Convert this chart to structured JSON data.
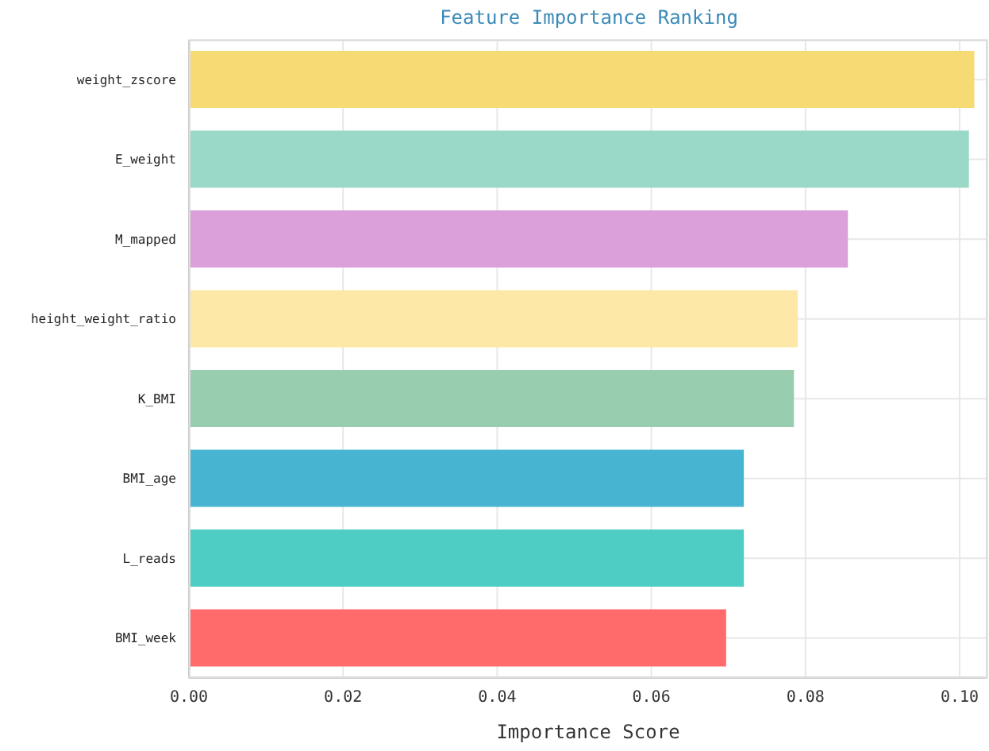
{
  "chart_data": {
    "type": "bar",
    "orientation": "horizontal",
    "title": "Feature Importance Ranking",
    "xlabel": "Importance Score",
    "categories": [
      "weight_zscore",
      "E_weight",
      "M_mapped",
      "height_weight_ratio",
      "K_BMI",
      "BMI_age",
      "L_reads",
      "BMI_week"
    ],
    "values": [
      0.1019,
      0.1012,
      0.0855,
      0.079,
      0.0785,
      0.072,
      0.072,
      0.0697
    ],
    "colors": [
      "#f6da74",
      "#9ad8c8",
      "#dba0da",
      "#fde8a8",
      "#98cdb0",
      "#47b5d2",
      "#4ecdc4",
      "#ff6b6b"
    ],
    "xlim": [
      0,
      0.1036
    ],
    "xticks": [
      {
        "value": 0,
        "label": "0.00"
      },
      {
        "value": 0.02,
        "label": "0.02"
      },
      {
        "value": 0.04,
        "label": "0.04"
      },
      {
        "value": 0.06,
        "label": "0.06"
      },
      {
        "value": 0.08,
        "label": "0.08"
      },
      {
        "value": 0.1,
        "label": "0.10"
      }
    ],
    "grid": true
  }
}
